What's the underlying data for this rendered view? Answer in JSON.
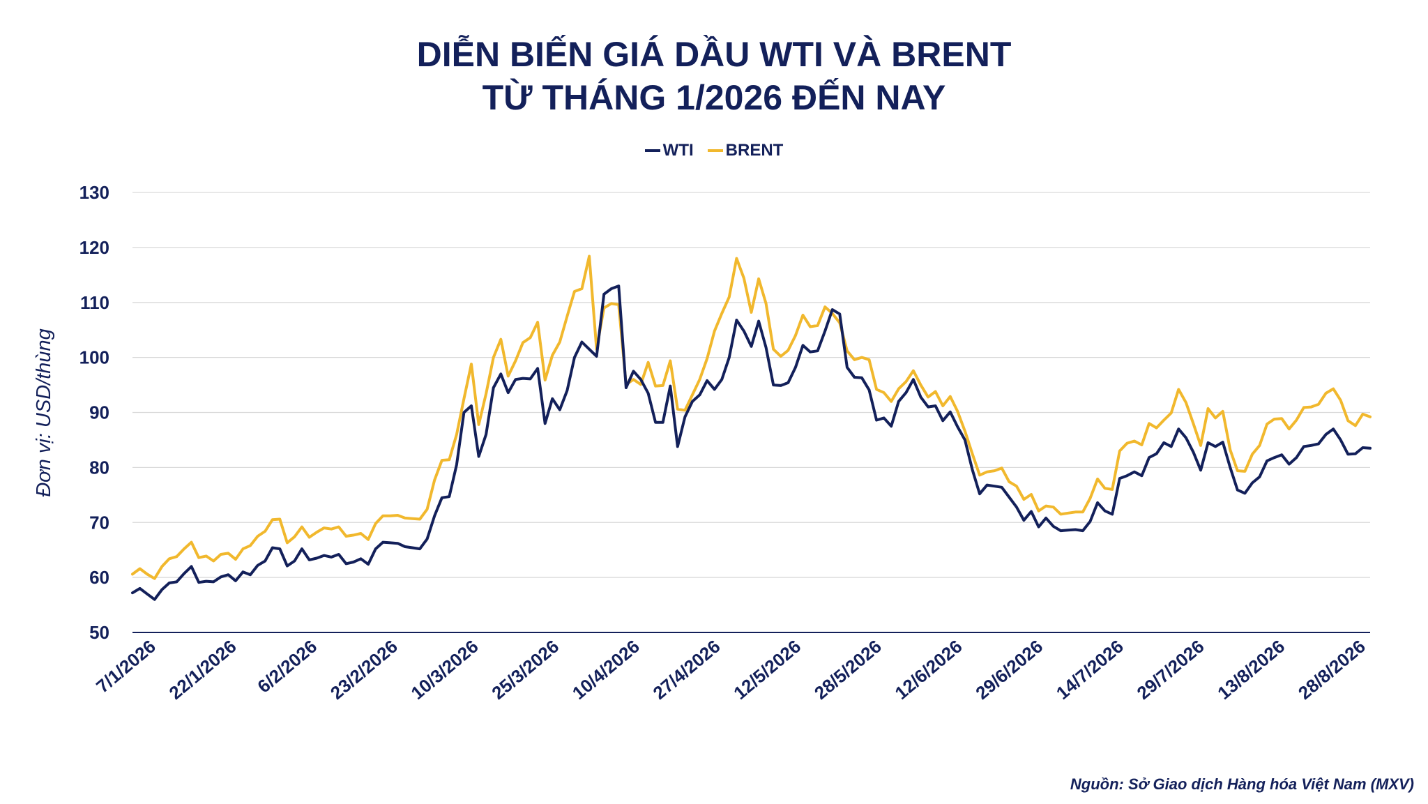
{
  "chart_data": {
    "type": "line",
    "title": "DIỄN BIẾN GIÁ DẦU WTI VÀ BRENT",
    "subtitle": "TỪ THÁNG 1/2026 ĐẾN NAY",
    "ylabel": "Đơn vị: USD/thùng",
    "xlabel": "",
    "ylim": [
      50,
      130
    ],
    "yticks": [
      50,
      60,
      70,
      80,
      90,
      100,
      110,
      120,
      130
    ],
    "grid": true,
    "legend_position": "top-center",
    "x_tick_labels": [
      "7/1/2026",
      "22/1/2026",
      "6/2/2026",
      "23/2/2026",
      "10/3/2026",
      "25/3/2026",
      "10/4/2026",
      "27/4/2026",
      "12/5/2026",
      "28/5/2026",
      "12/6/2026",
      "29/6/2026",
      "14/7/2026",
      "29/7/2026",
      "13/8/2026",
      "28/8/2026"
    ],
    "series": [
      {
        "name": "WTI",
        "color": "#13205a",
        "values": [
          57.2,
          58.0,
          57.0,
          56.0,
          57.8,
          59.0,
          59.2,
          60.7,
          62.0,
          59.1,
          59.3,
          59.2,
          60.1,
          60.5,
          59.4,
          61.0,
          60.5,
          62.2,
          63.0,
          65.4,
          65.2,
          62.1,
          63.0,
          65.2,
          63.2,
          63.5,
          64.0,
          63.7,
          64.2,
          62.5,
          62.8,
          63.4,
          62.4,
          65.2,
          66.4,
          66.3,
          66.2,
          65.6,
          65.4,
          65.2,
          67.0,
          71.2,
          74.5,
          74.7,
          80.5,
          90.0,
          91.2,
          82.0,
          86.0,
          94.5,
          97.0,
          93.6,
          96.0,
          96.2,
          96.1,
          98.0,
          88.0,
          92.5,
          90.5,
          94.0,
          100.0,
          102.8,
          101.5,
          100.2,
          111.5,
          112.5,
          113.0,
          94.5,
          97.5,
          96.0,
          93.5,
          88.2,
          88.2,
          94.8,
          83.8,
          89.2,
          92.0,
          93.2,
          95.8,
          94.2,
          96.0,
          100.0,
          106.8,
          104.8,
          102.0,
          106.6,
          101.8,
          95.0,
          94.9,
          95.4,
          98.2,
          102.2,
          101.0,
          101.2,
          104.8,
          108.7,
          107.9,
          98.2,
          96.4,
          96.3,
          94.1,
          88.6,
          89.0,
          87.5,
          92.0,
          93.6,
          96.0,
          92.8,
          91.0,
          91.2,
          88.5,
          90.1,
          87.4,
          85.0,
          79.6,
          75.2,
          76.8,
          76.6,
          76.4,
          74.6,
          72.8,
          70.4,
          72.0,
          69.2,
          70.8,
          69.3,
          68.5,
          68.6,
          68.7,
          68.5,
          70.2,
          73.6,
          72.1,
          71.5,
          78.0,
          78.5,
          79.2,
          78.5,
          81.8,
          82.5,
          84.5,
          83.8,
          87.0,
          85.4,
          82.8,
          79.5,
          84.5,
          83.8,
          84.6,
          80.0,
          75.9,
          75.3,
          77.2,
          78.3,
          81.2,
          81.8,
          82.3,
          80.6,
          81.8,
          83.8,
          84.0,
          84.3,
          86.0,
          87.0,
          85.0,
          82.4,
          82.5,
          83.6,
          83.5
        ]
      },
      {
        "name": "BRENT",
        "color": "#f1b82d",
        "values": [
          60.6,
          61.6,
          60.6,
          59.8,
          62.0,
          63.4,
          63.8,
          65.2,
          66.4,
          63.6,
          63.9,
          63.0,
          64.2,
          64.4,
          63.3,
          65.2,
          65.8,
          67.5,
          68.4,
          70.5,
          70.6,
          66.3,
          67.4,
          69.2,
          67.3,
          68.2,
          69.0,
          68.8,
          69.2,
          67.5,
          67.7,
          68.0,
          66.9,
          69.8,
          71.2,
          71.2,
          71.3,
          70.8,
          70.7,
          70.6,
          72.4,
          77.7,
          81.3,
          81.4,
          86.0,
          92.5,
          98.8,
          87.8,
          93.4,
          100.0,
          103.3,
          96.6,
          99.4,
          102.7,
          103.6,
          106.4,
          95.9,
          100.4,
          102.8,
          107.5,
          112.0,
          112.5,
          118.4,
          101.5,
          109.0,
          109.8,
          109.6,
          95.1,
          96.0,
          95.1,
          99.1,
          94.8,
          94.9,
          99.4,
          90.6,
          90.4,
          93.2,
          96.0,
          99.8,
          104.8,
          108.0,
          111.0,
          118.0,
          114.4,
          108.2,
          114.3,
          109.8,
          101.5,
          100.2,
          101.3,
          104.0,
          107.7,
          105.6,
          105.8,
          109.2,
          108.0,
          106.3,
          101.2,
          99.6,
          100.0,
          99.6,
          94.2,
          93.6,
          92.0,
          94.3,
          95.6,
          97.6,
          95.0,
          92.8,
          93.8,
          91.2,
          92.9,
          90.2,
          86.6,
          82.5,
          78.6,
          79.2,
          79.4,
          79.9,
          77.4,
          76.6,
          74.2,
          75.1,
          72.1,
          73.0,
          72.8,
          71.5,
          71.7,
          71.9,
          71.9,
          74.4,
          77.9,
          76.2,
          76.0,
          83.0,
          84.4,
          84.8,
          84.1,
          88.0,
          87.2,
          88.6,
          89.9,
          94.2,
          91.8,
          88.0,
          84.0,
          90.7,
          89.0,
          90.2,
          83.2,
          79.4,
          79.3,
          82.4,
          84.0,
          87.9,
          88.8,
          88.9,
          87.0,
          88.6,
          90.9,
          91.0,
          91.5,
          93.5,
          94.3,
          92.2,
          88.5,
          87.6,
          89.7,
          89.2
        ]
      }
    ]
  },
  "source": "Nguồn: Sở Giao dịch Hàng hóa Việt Nam (MXV)"
}
